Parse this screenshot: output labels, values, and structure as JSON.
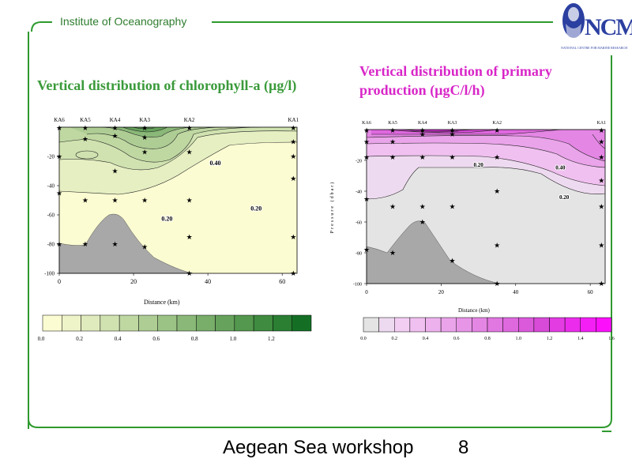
{
  "header": {
    "institute": "Institute of Oceanography",
    "logo_text": "NCMR",
    "logo_subtext": "NATIONAL CENTRE FOR MARINE RESEARCH"
  },
  "footer": {
    "title": "Aegean Sea workshop",
    "page": "8"
  },
  "colors": {
    "frame": "#2e9a2e",
    "chl_title": "#3a9a3a",
    "pp_title": "#d826c8",
    "bathymetry": "#a8a8a8"
  },
  "chart_data": [
    {
      "type": "heatmap",
      "title": "Vertical distribution of chlorophyll-a (µg/l)",
      "xlabel": "Distance (km)",
      "ylabel": "",
      "xlim": [
        0,
        64
      ],
      "ylim": [
        -100,
        0
      ],
      "xticks": [
        "0",
        "20",
        "40",
        "60"
      ],
      "yticks": [
        "-20",
        "-40",
        "-60",
        "-80",
        "-100"
      ],
      "stations": [
        {
          "name": "KA6",
          "x": 0
        },
        {
          "name": "KA5",
          "x": 7
        },
        {
          "name": "KA4",
          "x": 15
        },
        {
          "name": "KA3",
          "x": 23
        },
        {
          "name": "KA2",
          "x": 35
        },
        {
          "name": "KA1",
          "x": 63
        }
      ],
      "samples": [
        [
          0,
          -0.5
        ],
        [
          0,
          -20
        ],
        [
          0,
          -45
        ],
        [
          0,
          -80
        ],
        [
          7,
          -0.5
        ],
        [
          7,
          -8
        ],
        [
          7,
          -50
        ],
        [
          7,
          -80
        ],
        [
          15,
          -0.5
        ],
        [
          15,
          -6
        ],
        [
          15,
          -30
        ],
        [
          15,
          -50
        ],
        [
          15,
          -80
        ],
        [
          23,
          -0.5
        ],
        [
          23,
          -7
        ],
        [
          23,
          -17
        ],
        [
          23,
          -50
        ],
        [
          23,
          -82
        ],
        [
          35,
          -0.5
        ],
        [
          35,
          -17
        ],
        [
          35,
          -50
        ],
        [
          35,
          -75
        ],
        [
          35,
          -100
        ],
        [
          63,
          -0.5
        ],
        [
          63,
          -10
        ],
        [
          63,
          -20
        ],
        [
          63,
          -35
        ],
        [
          63,
          -75
        ],
        [
          63,
          -100
        ]
      ],
      "contour_labels": [
        {
          "text": "0.40",
          "x": 42,
          "y": -26
        },
        {
          "text": "0.20",
          "x": 53,
          "y": -57
        },
        {
          "text": "0.20",
          "x": 29,
          "y": -64
        }
      ],
      "colorbar": {
        "ticks": [
          "0.0",
          "0.2",
          "0.4",
          "0.6",
          "0.8",
          "1.0",
          "1.2"
        ],
        "colors": [
          "#fcfcd2",
          "#eef3c8",
          "#e0ebbd",
          "#d0e2b0",
          "#bfd8a2",
          "#aecd94",
          "#9cc386",
          "#8ab878",
          "#78ad6a",
          "#66a25c",
          "#54974e",
          "#3f8b40",
          "#2a7f32",
          "#146f25"
        ]
      }
    },
    {
      "type": "heatmap",
      "title": "Vertical distribution of primary production (µgC/l/h)",
      "xlabel": "Distance (km)",
      "ylabel": "Pressure (dbar)",
      "xlim": [
        0,
        64
      ],
      "ylim": [
        -100,
        0
      ],
      "xticks": [
        "0",
        "20",
        "40",
        "60"
      ],
      "yticks": [
        "-20",
        "-40",
        "-60",
        "-80",
        "-100"
      ],
      "stations": [
        {
          "name": "KA6",
          "x": 0
        },
        {
          "name": "KA5",
          "x": 7
        },
        {
          "name": "KA4",
          "x": 15
        },
        {
          "name": "KA3",
          "x": 23
        },
        {
          "name": "KA2",
          "x": 35
        },
        {
          "name": "KA1",
          "x": 63
        }
      ],
      "samples": [
        [
          0,
          -0.5
        ],
        [
          0,
          -8
        ],
        [
          0,
          -18
        ],
        [
          0,
          -45
        ],
        [
          0,
          -78
        ],
        [
          7,
          -0.5
        ],
        [
          7,
          -8
        ],
        [
          7,
          -18
        ],
        [
          7,
          -50
        ],
        [
          7,
          -80
        ],
        [
          15,
          -0.5
        ],
        [
          15,
          -3
        ],
        [
          15,
          -18
        ],
        [
          15,
          -50
        ],
        [
          15,
          -60
        ],
        [
          23,
          -0.5
        ],
        [
          23,
          -3
        ],
        [
          23,
          -18
        ],
        [
          23,
          -50
        ],
        [
          23,
          -85
        ],
        [
          35,
          -0.5
        ],
        [
          35,
          -18
        ],
        [
          35,
          -40
        ],
        [
          35,
          -75
        ],
        [
          35,
          -100
        ],
        [
          63,
          -0.5
        ],
        [
          63,
          -8
        ],
        [
          63,
          -18
        ],
        [
          63,
          -33
        ],
        [
          63,
          -50
        ],
        [
          63,
          -75
        ],
        [
          63,
          -100
        ]
      ],
      "contour_labels": [
        {
          "text": "0.20",
          "x": 30,
          "y": -24
        },
        {
          "text": "0.40",
          "x": 52,
          "y": -26
        },
        {
          "text": "0.20",
          "x": 53,
          "y": -45
        }
      ],
      "colorbar": {
        "ticks": [
          "0.0",
          "0.2",
          "0.4",
          "0.6",
          "0.8",
          "1.0",
          "1.2",
          "1.4",
          "1.6"
        ],
        "colors": [
          "#e4e4e4",
          "#eedaf0",
          "#f3cef3",
          "#f0c0f0",
          "#edb2ed",
          "#eaa4ea",
          "#e795e7",
          "#e486e4",
          "#e177e1",
          "#de68de",
          "#db59db",
          "#d84ad8",
          "#e23ce2",
          "#ec2cec",
          "#f41ff4",
          "#fc10fc"
        ]
      }
    }
  ]
}
